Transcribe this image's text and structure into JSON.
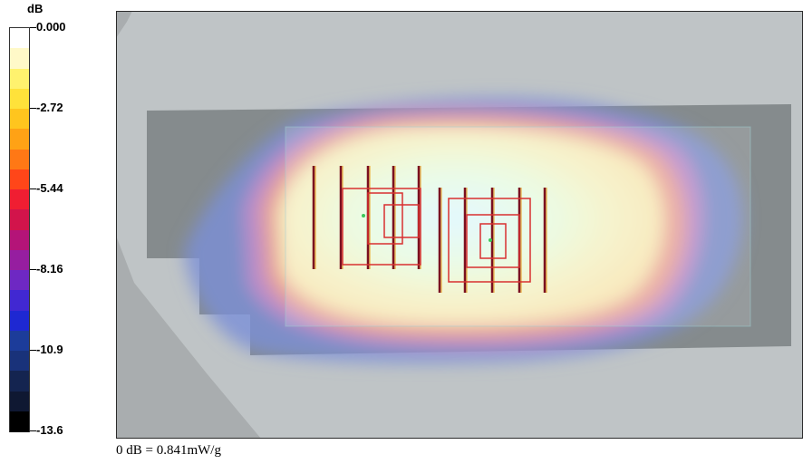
{
  "chart_data": {
    "type": "heatmap",
    "legend": {
      "unit": "dB",
      "ticks": [
        "0.000",
        "-2.72",
        "-5.44",
        "-8.16",
        "-10.9",
        "-13.6"
      ],
      "range": [
        -13.6,
        0.0
      ],
      "colors": [
        "#ffffff",
        "#fff9c8",
        "#fff26e",
        "#ffe23a",
        "#ffc51e",
        "#ffa215",
        "#ff7815",
        "#ff4619",
        "#f01e32",
        "#d2144b",
        "#b41478",
        "#961ea0",
        "#6e28c3",
        "#4128d2",
        "#1e28d2",
        "#1c3c9a",
        "#19327a",
        "#142450",
        "#0f1832",
        "#000000"
      ]
    },
    "caption": "0 dB = 0.841mW/g",
    "colors": {
      "background": "#bfc4c6",
      "phone_body": "#858b8d",
      "frame": "#2a2a2a"
    }
  }
}
